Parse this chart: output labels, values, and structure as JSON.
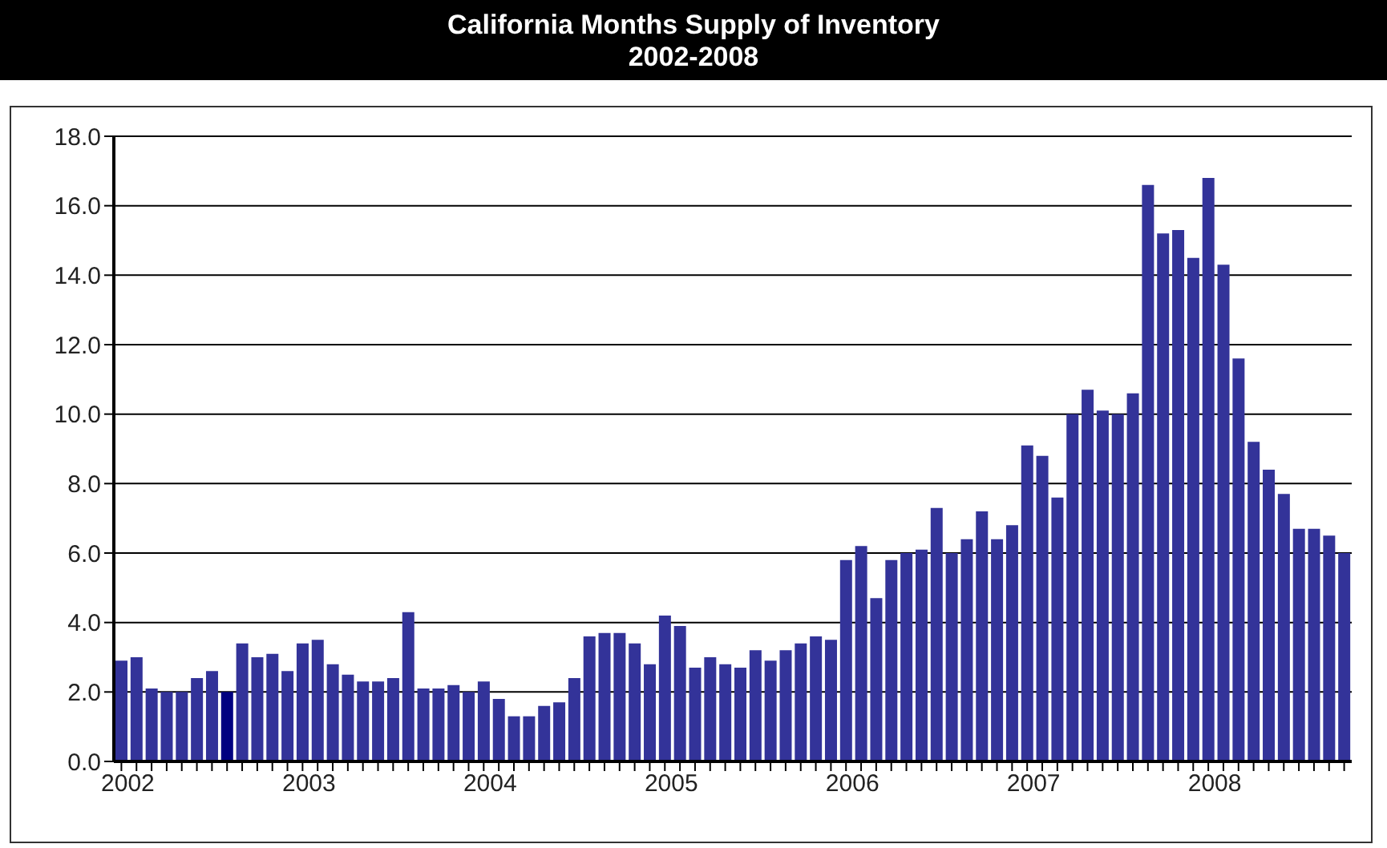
{
  "chart_data": {
    "type": "bar",
    "title": "California Months Supply of Inventory",
    "subtitle": "2002-2008",
    "categories": [
      "2002",
      null,
      null,
      null,
      null,
      null,
      null,
      null,
      null,
      null,
      null,
      null,
      "2003",
      null,
      null,
      null,
      null,
      null,
      null,
      null,
      null,
      null,
      null,
      null,
      "2004",
      null,
      null,
      null,
      null,
      null,
      null,
      null,
      null,
      null,
      null,
      null,
      "2005",
      null,
      null,
      null,
      null,
      null,
      null,
      null,
      null,
      null,
      null,
      null,
      "2006",
      null,
      null,
      null,
      null,
      null,
      null,
      null,
      null,
      null,
      null,
      null,
      "2007",
      null,
      null,
      null,
      null,
      null,
      null,
      null,
      null,
      null,
      null,
      null,
      "2008",
      null,
      null,
      null,
      null,
      null,
      null,
      null,
      null,
      null
    ],
    "values": [
      2.9,
      3.0,
      2.1,
      2.0,
      2.0,
      2.4,
      2.6,
      2.0,
      3.4,
      3.0,
      3.1,
      2.6,
      3.4,
      3.5,
      2.8,
      2.5,
      2.3,
      2.3,
      2.4,
      4.3,
      2.1,
      2.1,
      2.2,
      2.0,
      2.3,
      1.8,
      1.3,
      1.3,
      1.6,
      1.7,
      2.4,
      3.6,
      3.7,
      3.7,
      3.4,
      2.8,
      4.2,
      3.9,
      2.7,
      3.0,
      2.8,
      2.7,
      3.2,
      2.9,
      3.2,
      3.4,
      3.6,
      3.5,
      5.8,
      6.2,
      4.7,
      5.8,
      6.0,
      6.1,
      7.3,
      6.0,
      6.4,
      7.2,
      6.4,
      6.8,
      9.1,
      8.8,
      7.6,
      10.0,
      10.7,
      10.1,
      10.0,
      10.6,
      16.6,
      15.2,
      15.3,
      14.5,
      16.8,
      14.3,
      11.6,
      9.2,
      8.4,
      7.7,
      6.7,
      6.7,
      6.5,
      6.0
    ],
    "colors": [
      "#333399",
      "#333399",
      "#333399",
      "#333399",
      "#333399",
      "#333399",
      "#333399",
      "#000080",
      "#333399",
      "#333399",
      "#333399",
      "#333399",
      "#333399",
      "#333399",
      "#333399",
      "#333399",
      "#333399",
      "#333399",
      "#333399",
      "#333399",
      "#333399",
      "#333399",
      "#333399",
      "#333399",
      "#333399",
      "#333399",
      "#333399",
      "#333399",
      "#333399",
      "#333399",
      "#333399",
      "#333399",
      "#333399",
      "#333399",
      "#333399",
      "#333399",
      "#333399",
      "#333399",
      "#333399",
      "#333399",
      "#333399",
      "#333399",
      "#333399",
      "#333399",
      "#333399",
      "#333399",
      "#333399",
      "#333399",
      "#333399",
      "#333399",
      "#333399",
      "#333399",
      "#333399",
      "#333399",
      "#333399",
      "#333399",
      "#333399",
      "#333399",
      "#333399",
      "#333399",
      "#333399",
      "#333399",
      "#333399",
      "#333399",
      "#333399",
      "#333399",
      "#333399",
      "#333399",
      "#333399",
      "#333399",
      "#333399",
      "#333399",
      "#333399",
      "#333399",
      "#333399",
      "#333399",
      "#333399",
      "#333399",
      "#333399",
      "#333399",
      "#333399",
      "#333399"
    ],
    "ylim": [
      0,
      18
    ],
    "yticks": [
      {
        "value": 0,
        "label": "0.0"
      },
      {
        "value": 2,
        "label": "2.0"
      },
      {
        "value": 4,
        "label": "4.0"
      },
      {
        "value": 6,
        "label": "6.0"
      },
      {
        "value": 8,
        "label": "8.0"
      },
      {
        "value": 10,
        "label": "10.0"
      },
      {
        "value": 12,
        "label": "12.0"
      },
      {
        "value": 14,
        "label": "14.0"
      },
      {
        "value": 16,
        "label": "16.0"
      },
      {
        "value": 18,
        "label": "18.0"
      }
    ],
    "grid": "y",
    "legend": false
  }
}
